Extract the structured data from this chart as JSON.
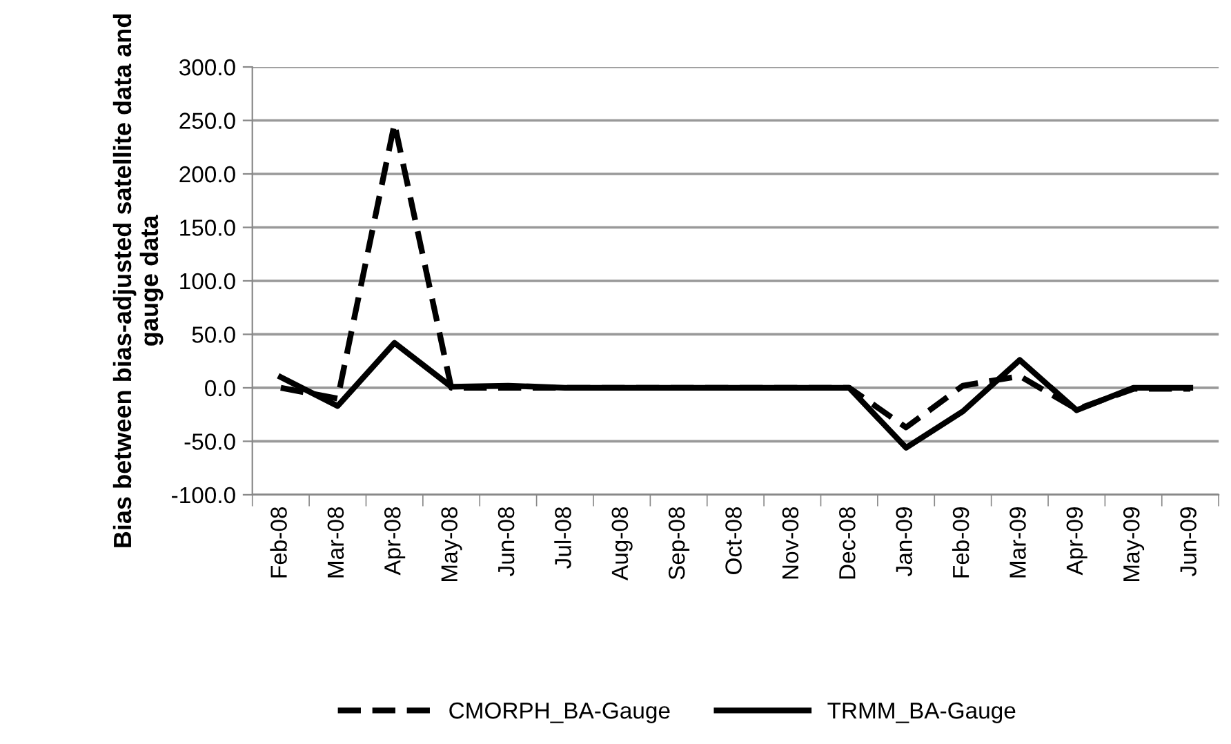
{
  "chart_data": {
    "type": "line",
    "ylabel": "Bias between bias-adjusted satellite data and gauge data",
    "categories": [
      "Feb-08",
      "Mar-08",
      "Apr-08",
      "May-08",
      "Jun-08",
      "Jul-08",
      "Aug-08",
      "Sep-08",
      "Oct-08",
      "Nov-08",
      "Dec-08",
      "Jan-09",
      "Feb-09",
      "Mar-09",
      "Apr-09",
      "May-09",
      "Jun-09"
    ],
    "series": [
      {
        "name": "CMORPH_BA-Gauge",
        "color": "#000000",
        "line_style": "dashed",
        "values": [
          0,
          -10,
          247,
          0,
          0,
          0,
          0,
          0,
          0,
          0,
          0,
          -37,
          2,
          11,
          -20,
          -1,
          -1
        ]
      },
      {
        "name": "TRMM_BA-Gauge",
        "color": "#000000",
        "line_style": "solid",
        "values": [
          10,
          -17,
          42,
          1,
          2,
          0,
          0,
          0,
          0,
          0,
          0,
          -56,
          -22,
          26,
          -21,
          0,
          0
        ]
      }
    ],
    "ylim": [
      -100,
      300
    ],
    "yticks": [
      {
        "value": -100,
        "label": "-100.0"
      },
      {
        "value": -50,
        "label": "-50.0"
      },
      {
        "value": 0,
        "label": "0.0"
      },
      {
        "value": 50,
        "label": "50.0"
      },
      {
        "value": 100,
        "label": "100.0"
      },
      {
        "value": 150,
        "label": "150.0"
      },
      {
        "value": 200,
        "label": "200.0"
      },
      {
        "value": 250,
        "label": "250.0"
      },
      {
        "value": 300,
        "label": "300.0"
      }
    ],
    "grid": "y",
    "legend": "bottom",
    "marker": "none"
  }
}
